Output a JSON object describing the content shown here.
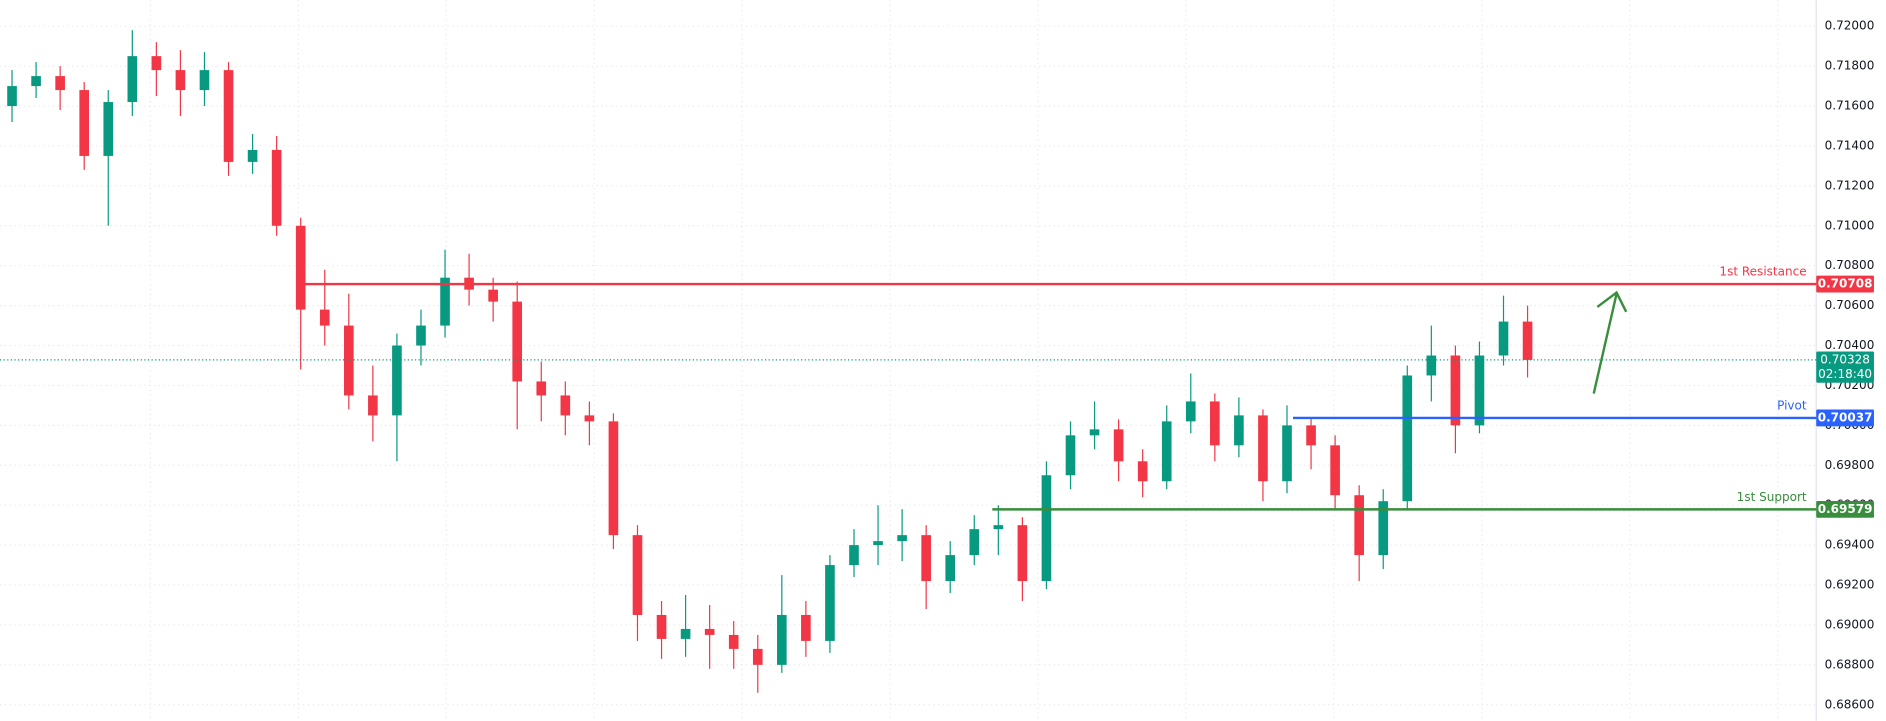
{
  "chart_data": {
    "type": "candlestick",
    "open": [
      0.716,
      0.717,
      0.7175,
      0.7168,
      0.7135,
      0.7162,
      0.7185,
      0.7178,
      0.7168,
      0.7178,
      0.7132,
      0.7138,
      0.71,
      0.7058,
      0.705,
      0.7015,
      0.7005,
      0.704,
      0.705,
      0.7074,
      0.7068,
      0.7062,
      0.7022,
      0.7015,
      0.7005,
      0.7002,
      0.6945,
      0.6905,
      0.6893,
      0.6898,
      0.6895,
      0.6888,
      0.688,
      0.6905,
      0.6892,
      0.693,
      0.694,
      0.6942,
      0.6945,
      0.6922,
      0.6935,
      0.6948,
      0.695,
      0.6922,
      0.6975,
      0.6995,
      0.6998,
      0.6982,
      0.6972,
      0.7002,
      0.7012,
      0.699,
      0.7005,
      0.6972,
      0.7,
      0.699,
      0.6965,
      0.6935,
      0.6962,
      0.7025,
      0.7035,
      0.7,
      0.7035,
      0.7052
    ],
    "high": [
      0.7178,
      0.7182,
      0.718,
      0.7172,
      0.7168,
      0.7198,
      0.7192,
      0.7188,
      0.7187,
      0.7182,
      0.7146,
      0.7145,
      0.7104,
      0.7078,
      0.7066,
      0.703,
      0.7046,
      0.7058,
      0.7088,
      0.7086,
      0.7074,
      0.7072,
      0.7032,
      0.7022,
      0.7012,
      0.7006,
      0.695,
      0.6912,
      0.6915,
      0.691,
      0.6902,
      0.6895,
      0.6925,
      0.6912,
      0.6935,
      0.6948,
      0.696,
      0.6958,
      0.695,
      0.6942,
      0.6955,
      0.696,
      0.6954,
      0.6982,
      0.7002,
      0.7012,
      0.7003,
      0.6988,
      0.701,
      0.7026,
      0.7016,
      0.7014,
      0.7008,
      0.701,
      0.7004,
      0.6995,
      0.697,
      0.6968,
      0.703,
      0.705,
      0.704,
      0.7042,
      0.7065,
      0.706
    ],
    "low": [
      0.7152,
      0.7164,
      0.7158,
      0.7128,
      0.71,
      0.7155,
      0.7165,
      0.7155,
      0.716,
      0.7125,
      0.7126,
      0.7095,
      0.7028,
      0.704,
      0.7008,
      0.6992,
      0.6982,
      0.703,
      0.7044,
      0.706,
      0.7052,
      0.6998,
      0.7002,
      0.6995,
      0.699,
      0.6938,
      0.6892,
      0.6883,
      0.6884,
      0.6878,
      0.6878,
      0.6866,
      0.6876,
      0.6884,
      0.6886,
      0.6924,
      0.693,
      0.6932,
      0.6908,
      0.6916,
      0.693,
      0.6935,
      0.6912,
      0.6918,
      0.6968,
      0.6988,
      0.6972,
      0.6964,
      0.6968,
      0.6996,
      0.6982,
      0.6984,
      0.6962,
      0.6966,
      0.6978,
      0.6958,
      0.6922,
      0.6928,
      0.6958,
      0.7012,
      0.6986,
      0.6996,
      0.703,
      0.7024
    ],
    "close": [
      0.717,
      0.7175,
      0.7168,
      0.7135,
      0.7162,
      0.7185,
      0.7178,
      0.7168,
      0.7178,
      0.7132,
      0.7138,
      0.71,
      0.7058,
      0.705,
      0.7015,
      0.7005,
      0.704,
      0.705,
      0.7074,
      0.7068,
      0.7062,
      0.7022,
      0.7015,
      0.7005,
      0.7002,
      0.6945,
      0.6905,
      0.6893,
      0.6898,
      0.6895,
      0.6888,
      0.688,
      0.6905,
      0.6892,
      0.693,
      0.694,
      0.6942,
      0.6945,
      0.6922,
      0.6935,
      0.6948,
      0.695,
      0.6922,
      0.6975,
      0.6995,
      0.6998,
      0.6982,
      0.6972,
      0.7002,
      0.7012,
      0.699,
      0.7005,
      0.6972,
      0.7,
      0.699,
      0.6965,
      0.6935,
      0.6962,
      0.7025,
      0.7035,
      0.7,
      0.7035,
      0.7052,
      0.70328
    ],
    "up_color": "#089981",
    "down_color": "#f23645",
    "ylim": [
      0.6852,
      0.7213
    ],
    "yticks": [
      {
        "value": 0.72,
        "label": "0.72000"
      },
      {
        "value": 0.718,
        "label": "0.71800"
      },
      {
        "value": 0.716,
        "label": "0.71600"
      },
      {
        "value": 0.714,
        "label": "0.71400"
      },
      {
        "value": 0.712,
        "label": "0.71200"
      },
      {
        "value": 0.71,
        "label": "0.71000"
      },
      {
        "value": 0.708,
        "label": "0.70800"
      },
      {
        "value": 0.706,
        "label": "0.70600"
      },
      {
        "value": 0.704,
        "label": "0.70400"
      },
      {
        "value": 0.702,
        "label": "0.70200"
      },
      {
        "value": 0.7,
        "label": "0.70000"
      },
      {
        "value": 0.698,
        "label": "0.69800"
      },
      {
        "value": 0.696,
        "label": "0.69600"
      },
      {
        "value": 0.694,
        "label": "0.69400"
      },
      {
        "value": 0.692,
        "label": "0.69200"
      },
      {
        "value": 0.69,
        "label": "0.69000"
      },
      {
        "value": 0.688,
        "label": "0.68800"
      },
      {
        "value": 0.686,
        "label": "0.68600"
      }
    ],
    "grid": true,
    "levels": [
      {
        "name": "1st Resistance",
        "value": 0.70708,
        "color": "#f23645"
      },
      {
        "name": "Pivot",
        "value": 0.70037,
        "color": "#2962ff"
      },
      {
        "name": "1st Support",
        "value": 0.69579,
        "color": "#388e3c"
      }
    ],
    "current_price": {
      "value": 0.70328,
      "countdown": "02:18:40",
      "color": "#089981"
    }
  }
}
